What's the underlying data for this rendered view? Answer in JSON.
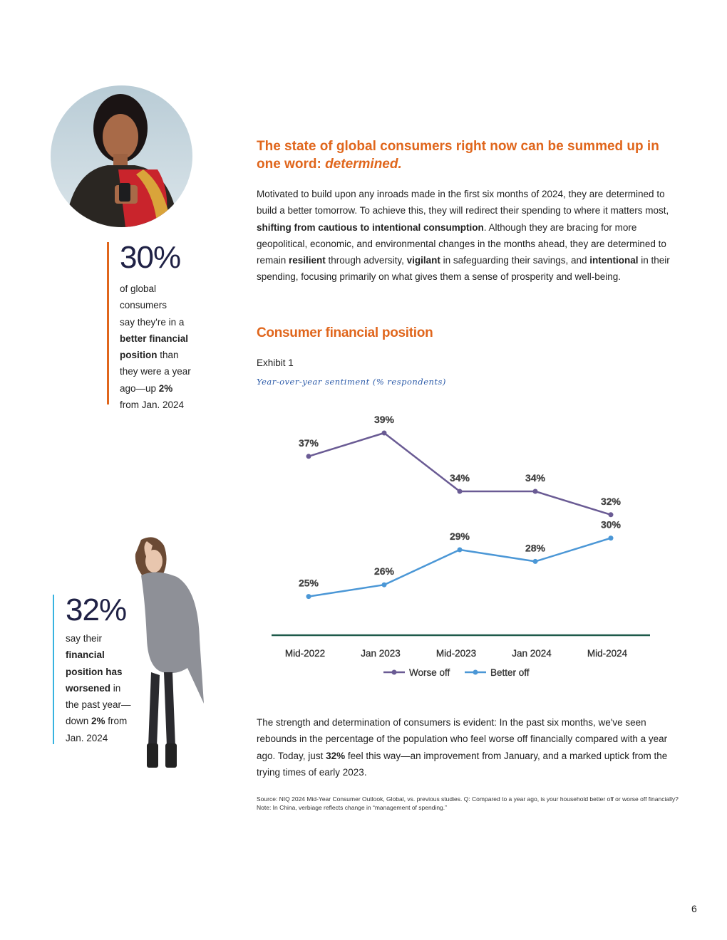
{
  "stat1": {
    "value": "30%",
    "line1": "of global",
    "line2": "consumers",
    "line3": "say they're in a",
    "bold1": "better financial",
    "bold2": "position",
    "line4": " than",
    "line5": "they were a year",
    "line6a": "ago—up ",
    "line6b": "2%",
    "line7": "from Jan. 2024"
  },
  "stat2": {
    "value": "32%",
    "line1": "say their",
    "bold1": "financial",
    "bold2": "position has",
    "bold3": "worsened",
    "line2": " in",
    "line3": "the past year—",
    "line4a": "down ",
    "line4b": "2%",
    "line4c": " from",
    "line5": "Jan. 2024"
  },
  "headline": {
    "text": "The state of global consumers right now can be summed up in one word: ",
    "emphasis": "determined."
  },
  "intro": {
    "p1": "Motivated to build upon any inroads made in the first six months of 2024, they are determined to build a better tomorrow. To achieve this, they will redirect their spending to where it matters most, ",
    "b1": "shifting from cautious to intentional consumption",
    "p2": ". Although they are bracing for more geopolitical, economic, and environmental changes in the months ahead, they are determined to remain ",
    "b2": "resilient",
    "p3": " through adversity, ",
    "b3": "vigilant",
    "p4": " in safeguarding their savings, and ",
    "b4": "intentional",
    "p5": " in their spending, focusing primarily on what gives them a sense of prosperity and well-being."
  },
  "section_title": "Consumer financial position",
  "exhibit_label": "Exhibit 1",
  "exhibit_subtitle": "Year-over-year sentiment (% respondents)",
  "chart_data": {
    "type": "line",
    "categories": [
      "Mid-2022",
      "Jan 2023",
      "Mid-2023",
      "Jan 2024",
      "Mid-2024"
    ],
    "series": [
      {
        "name": "Worse off",
        "values": [
          37,
          39,
          34,
          34,
          32
        ],
        "color": "#6a5b94"
      },
      {
        "name": "Better off",
        "values": [
          25,
          26,
          29,
          28,
          30
        ],
        "color": "#4b97d6"
      }
    ],
    "value_suffix": "%",
    "legend_position": "bottom-center",
    "grid": false,
    "axis_color": "#1e5a4a"
  },
  "outro": {
    "p1": "The strength and determination of consumers is evident: In the past six months, we've seen rebounds in the percentage of the population who feel worse off financially compared with a year ago. Today, just ",
    "b1": "32%",
    "p2": " feel this way—an improvement from January, and a marked uptick from the trying times of early 2023."
  },
  "source": "Source: NIQ 2024 Mid-Year Consumer Outlook, Global, vs. previous studies. Q: Compared to a year ago, is your household better off or worse off financially? Note: In China, verbiage reflects change in “management of spending.”",
  "page_number": "6"
}
